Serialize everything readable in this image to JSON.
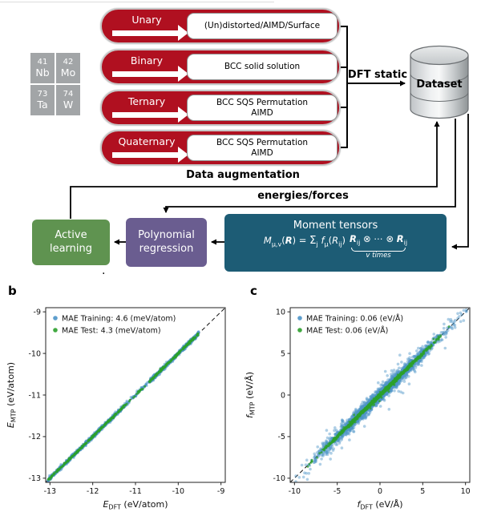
{
  "figure": {
    "stray_period": "."
  },
  "diagram": {
    "elements": [
      {
        "number": "41",
        "symbol": "Nb"
      },
      {
        "number": "42",
        "symbol": "Mo"
      },
      {
        "number": "73",
        "symbol": "Ta"
      },
      {
        "number": "74",
        "symbol": "W"
      }
    ],
    "pipelines": [
      {
        "label": "Unary",
        "box": "(Un)distorted/AIMD/Surface"
      },
      {
        "label": "Binary",
        "box": "BCC solid solution"
      },
      {
        "label": "Ternary",
        "box": "BCC SQS Permutation\nAIMD"
      },
      {
        "label": "Quaternary",
        "box": "BCC SQS Permutation\nAIMD"
      }
    ],
    "dft_static": "DFT static",
    "dataset": "Dataset",
    "data_augmentation": "Data augmentation",
    "energies_forces": "energies/forces",
    "active_learning": "Active\nlearning",
    "polynomial_regression": "Polynomial\nregression",
    "moment_tensors_title": "Moment tensors",
    "moment_eq_left_html": "<i>M</i><sub>μ,v</sub>(<b><i>R</i></b>) = <span style='font-size:13.5px'>Σ</span><sub>j</sub> <i>f</i><sub>μ</sub>(<i>R</i><sub>ij</sub>)",
    "moment_eq_brace_html": "<b><i>R</i></b><sub>ij</sub> ⊗ ⋯ ⊗ <b><i>R</i></b><sub>ij</sub>",
    "moment_eq_vtimes": "v times",
    "colors": {
      "pipeline_red": "#b01020",
      "element_gray": "#a2a5a7",
      "active_green": "#5f9350",
      "regression_purple": "#6a5d90",
      "tensor_teal": "#1d5c75"
    }
  },
  "chart_data": [
    {
      "id": "energy-parity",
      "panel_label": "b",
      "type": "scatter",
      "xlabel": {
        "sym": "E",
        "sub": "DFT",
        "rest": " (eV/atom)"
      },
      "ylabel": {
        "sym": "E",
        "sub": "MTP",
        "rest": " (eV/atom)"
      },
      "xlim": [
        -13.1,
        -8.9
      ],
      "ylim": [
        -13.1,
        -8.9
      ],
      "xticks": [
        -13,
        -12,
        -11,
        -10,
        -9
      ],
      "yticks": [
        -13,
        -12,
        -11,
        -10,
        -9
      ],
      "diagonal": true,
      "grid": false,
      "legend_position": "upper-left",
      "series": [
        {
          "name": "MAE Training: 4.6 (meV/atom)",
          "color": "#4d94c8",
          "opacity": 0.5,
          "radius": 1.7,
          "n": 1400,
          "seed": 7,
          "gen": {
            "type": "bands",
            "sigma": 0.022,
            "bands": [
              {
                "lo": -13.05,
                "hi": -12.62,
                "w": 0.1
              },
              {
                "lo": -12.62,
                "hi": -11.32,
                "w": 0.42
              },
              {
                "lo": -11.32,
                "hi": -10.68,
                "w": 0.05
              },
              {
                "lo": -10.68,
                "hi": -9.52,
                "w": 0.43
              }
            ]
          }
        },
        {
          "name": "MAE Test: 4.3 (meV/atom)",
          "color": "#2ca02c",
          "opacity": 0.8,
          "radius": 1.4,
          "n": 500,
          "seed": 21,
          "gen": {
            "type": "bands",
            "sigma": 0.012,
            "bands": [
              {
                "lo": -13.05,
                "hi": -12.62,
                "w": 0.1
              },
              {
                "lo": -12.62,
                "hi": -11.32,
                "w": 0.42
              },
              {
                "lo": -11.32,
                "hi": -10.68,
                "w": 0.05
              },
              {
                "lo": -10.68,
                "hi": -9.52,
                "w": 0.43
              }
            ]
          }
        }
      ]
    },
    {
      "id": "force-parity",
      "panel_label": "c",
      "type": "scatter",
      "xlabel": {
        "sym": "f",
        "sub": "DFT",
        "rest": " (eV/Å)"
      },
      "ylabel": {
        "sym": "f",
        "sub": "MTP",
        "rest": " (eV/Å)"
      },
      "xlim": [
        -10.5,
        10.5
      ],
      "ylim": [
        -10.5,
        10.5
      ],
      "xticks": [
        -10,
        -5,
        0,
        5,
        10
      ],
      "yticks": [
        -10,
        -5,
        0,
        5,
        10
      ],
      "diagonal": true,
      "grid": false,
      "legend_position": "upper-left",
      "series": [
        {
          "name": "MAE Training: 0.06 (eV/Å)",
          "color": "#4d94c8",
          "opacity": 0.45,
          "radius": 1.8,
          "n": 2200,
          "seed": 3,
          "gen": {
            "type": "diag",
            "xsigma": 3.4,
            "clip": 10.3,
            "noise": 0.4,
            "outlier_frac": 0.07,
            "outlier_noise": 1.1
          }
        },
        {
          "name": "MAE Test: 0.06 (eV/Å)",
          "color": "#2ca02c",
          "opacity": 0.75,
          "radius": 1.4,
          "n": 1400,
          "seed": 11,
          "gen": {
            "type": "diag",
            "xsigma": 2.7,
            "clip": 8.8,
            "noise": 0.1,
            "outlier_frac": 0.02,
            "outlier_noise": 0.35
          }
        }
      ]
    }
  ]
}
